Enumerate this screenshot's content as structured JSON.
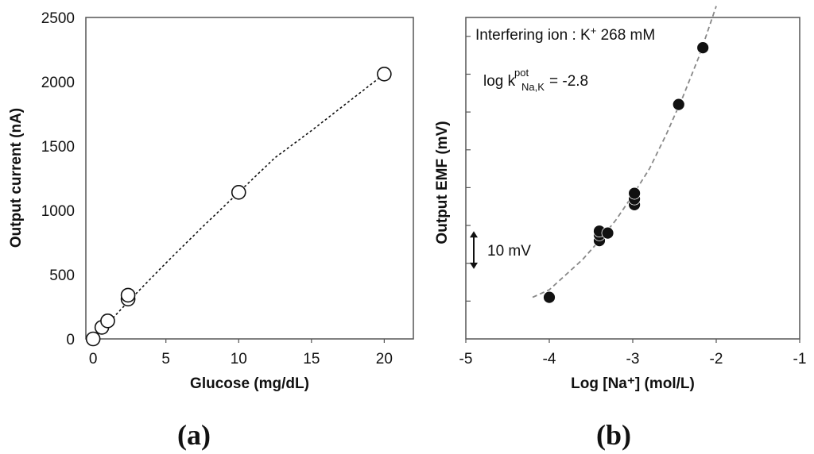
{
  "chart_data": [
    {
      "type": "scatter",
      "panel_label": "(a)",
      "title": "",
      "xlabel": "Glucose (mg/dL)",
      "ylabel": "Output current  (nA)",
      "xlim": [
        -0.5,
        22
      ],
      "ylim": [
        0,
        2500
      ],
      "xticks": [
        0,
        5,
        10,
        15,
        20
      ],
      "yticks": [
        0,
        500,
        1000,
        1500,
        2000,
        2500
      ],
      "xtick_labels": [
        "0",
        "5",
        "10",
        "15",
        "20"
      ],
      "ytick_labels": [
        "0",
        "500",
        "1000",
        "1500",
        "2000",
        "2500"
      ],
      "grid": false,
      "marker": "open-circle",
      "points": [
        {
          "x": 0,
          "y": 0
        },
        {
          "x": 0.6,
          "y": 90
        },
        {
          "x": 1,
          "y": 140
        },
        {
          "x": 2.4,
          "y": 310
        },
        {
          "x": 2.4,
          "y": 340
        },
        {
          "x": 10,
          "y": 1140
        },
        {
          "x": 20,
          "y": 2060
        }
      ],
      "fit_curve": [
        [
          0,
          0
        ],
        [
          2.5,
          300
        ],
        [
          5,
          590
        ],
        [
          7.5,
          870
        ],
        [
          10,
          1140
        ],
        [
          12.5,
          1410
        ],
        [
          15,
          1620
        ],
        [
          17.5,
          1840
        ],
        [
          20,
          2060
        ]
      ]
    },
    {
      "type": "scatter",
      "panel_label": "(b)",
      "title": "",
      "xlabel": "Log [Na⁺] (mol/L)",
      "ylabel": "Output EMF (mV)",
      "xlim": [
        -5,
        -1
      ],
      "ylim": [
        0,
        85
      ],
      "xticks": [
        -5,
        -4,
        -3,
        -2,
        -1
      ],
      "xtick_labels": [
        "-5",
        "-4",
        "-3",
        "-2",
        "-1"
      ],
      "ytick_values": [
        10,
        20,
        30,
        40,
        50,
        60,
        70,
        80
      ],
      "grid": false,
      "marker": "filled-circle",
      "points": [
        {
          "x": -4.0,
          "y": 11
        },
        {
          "x": -3.4,
          "y": 26
        },
        {
          "x": -3.4,
          "y": 27.5
        },
        {
          "x": -3.4,
          "y": 28.5
        },
        {
          "x": -3.3,
          "y": 28
        },
        {
          "x": -2.98,
          "y": 35.5
        },
        {
          "x": -2.98,
          "y": 37
        },
        {
          "x": -2.98,
          "y": 38.5
        },
        {
          "x": -2.45,
          "y": 62
        },
        {
          "x": -2.16,
          "y": 77
        }
      ],
      "fit_curve": [
        [
          -4.2,
          11
        ],
        [
          -4.0,
          13
        ],
        [
          -3.8,
          17
        ],
        [
          -3.6,
          21
        ],
        [
          -3.4,
          26
        ],
        [
          -3.2,
          31.5
        ],
        [
          -3.0,
          38
        ],
        [
          -2.8,
          45
        ],
        [
          -2.6,
          54
        ],
        [
          -2.4,
          64
        ],
        [
          -2.2,
          75
        ],
        [
          -2.0,
          88
        ]
      ],
      "annotations": {
        "interfering_ion_prefix": "Interfering ion : K",
        "interfering_ion_sup": "+",
        "interfering_ion_suffix": " 268 mM",
        "selectivity_prefix": "log k",
        "selectivity_sup": "pot",
        "selectivity_sub": "Na,K",
        "selectivity_value": " = -2.8",
        "scale_bar_label": "10 mV",
        "scale_bar_mv": 10
      }
    }
  ]
}
